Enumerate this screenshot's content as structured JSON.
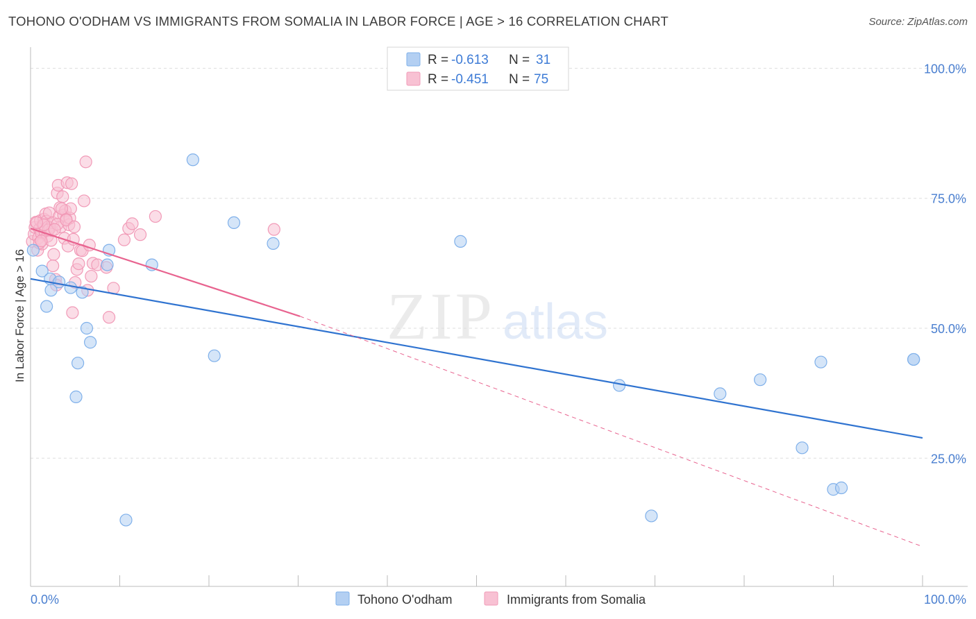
{
  "title": "TOHONO O'ODHAM VS IMMIGRANTS FROM SOMALIA IN LABOR FORCE | AGE > 16 CORRELATION CHART",
  "source": "Source: ZipAtlas.com",
  "watermark": {
    "zip": "ZIP",
    "atlas": "atlas"
  },
  "colors": {
    "blue": "#7fb0ea",
    "blue_fill": "#b3cff2",
    "blue_line": "#2f73d0",
    "pink": "#f19ab7",
    "pink_fill": "#f8c1d3",
    "pink_line": "#e8638f",
    "axis_label": "#4a7fd0",
    "grid": "#dddddd"
  },
  "legend": {
    "r_label": "R = ",
    "n_label": "N = ",
    "series": [
      {
        "r": "-0.613",
        "n": "31"
      },
      {
        "r": "-0.451",
        "n": "75"
      }
    ]
  },
  "chart_data": {
    "type": "scatter",
    "xlabel": "",
    "ylabel": "In Labor Force | Age > 16",
    "xlim": [
      0,
      100
    ],
    "ylim": [
      0,
      100
    ],
    "x_tick_labels": [
      "0.0%",
      "100.0%"
    ],
    "y_ticks": [
      25,
      50,
      75,
      100
    ],
    "y_tick_labels": [
      "25.0%",
      "50.0%",
      "75.0%",
      "100.0%"
    ],
    "series": [
      {
        "name": "Tohono O'odham",
        "x": [
          0.3,
          1.3,
          2.3,
          1.8,
          2.2,
          3.2,
          4.5,
          5.8,
          6.3,
          5.3,
          5.1,
          6.7,
          8.6,
          8.8,
          10.7,
          13.6,
          18.2,
          20.6,
          22.8,
          27.2,
          48.2,
          66.0,
          69.6,
          77.3,
          81.8,
          86.5,
          88.6,
          90.0,
          90.9,
          99.0,
          99.0
        ],
        "y": [
          65.0,
          61.0,
          57.3,
          54.2,
          59.5,
          58.9,
          57.8,
          56.9,
          50.0,
          43.3,
          36.8,
          47.3,
          62.2,
          65.0,
          13.1,
          62.2,
          82.4,
          44.7,
          70.3,
          66.3,
          66.7,
          39.0,
          13.9,
          37.4,
          40.1,
          27.0,
          43.5,
          19.0,
          19.3,
          44.0,
          44.0
        ]
      },
      {
        "name": "Immigrants from Somalia",
        "x": [
          0.2,
          0.4,
          0.5,
          0.6,
          0.8,
          0.9,
          1.0,
          1.1,
          1.2,
          1.3,
          1.4,
          1.5,
          1.6,
          1.7,
          1.8,
          1.9,
          2.0,
          2.1,
          2.2,
          2.3,
          2.4,
          2.5,
          2.6,
          2.8,
          2.9,
          3.0,
          3.1,
          3.2,
          3.3,
          3.4,
          3.6,
          3.7,
          3.8,
          3.9,
          4.0,
          4.1,
          4.2,
          4.3,
          4.4,
          4.5,
          4.6,
          4.7,
          4.8,
          5.0,
          5.2,
          5.4,
          5.6,
          5.8,
          6.0,
          6.2,
          6.4,
          6.6,
          6.8,
          7.0,
          7.5,
          8.5,
          8.8,
          9.3,
          10.5,
          11.0,
          11.4,
          12.3,
          14.0,
          27.3,
          1.0,
          2.0,
          3.0,
          4.0,
          2.5,
          3.5,
          1.5,
          0.7,
          1.2,
          2.7,
          4.9
        ],
        "y": [
          66.7,
          68.1,
          69.4,
          70.4,
          65.0,
          67.4,
          69.1,
          70.7,
          68.3,
          66.2,
          69.9,
          71.0,
          68.6,
          72.0,
          70.6,
          67.7,
          69.5,
          72.2,
          69.3,
          66.9,
          68.8,
          70.3,
          64.2,
          59.4,
          58.3,
          76.0,
          77.5,
          71.5,
          73.2,
          69.5,
          75.3,
          71.8,
          67.3,
          72.6,
          71.0,
          78.0,
          65.8,
          69.9,
          71.2,
          73.0,
          77.8,
          53.0,
          67.1,
          58.8,
          61.3,
          62.4,
          65.0,
          64.9,
          74.5,
          82.0,
          57.3,
          66.0,
          60.0,
          62.5,
          62.2,
          61.7,
          52.1,
          57.7,
          67.0,
          69.2,
          70.1,
          68.0,
          71.5,
          69.0,
          66.4,
          68.9,
          70.0,
          70.8,
          62.0,
          73.0,
          69.9,
          70.3,
          66.8,
          69.0,
          69.5
        ]
      }
    ],
    "trendlines": [
      {
        "series": "Tohono O'odham",
        "x": [
          0,
          100
        ],
        "y": [
          59.5,
          28.9
        ],
        "style": "solid"
      },
      {
        "series": "Immigrants from Somalia",
        "x": [
          0,
          30.2
        ],
        "y": [
          69.2,
          52.3
        ],
        "style": "solid"
      },
      {
        "series": "Immigrants from Somalia",
        "x": [
          30.2,
          100
        ],
        "y": [
          52.3,
          8.0
        ],
        "style": "dashed"
      }
    ],
    "legend_position": "top-center",
    "bottom_legend_position": "bottom-center"
  }
}
